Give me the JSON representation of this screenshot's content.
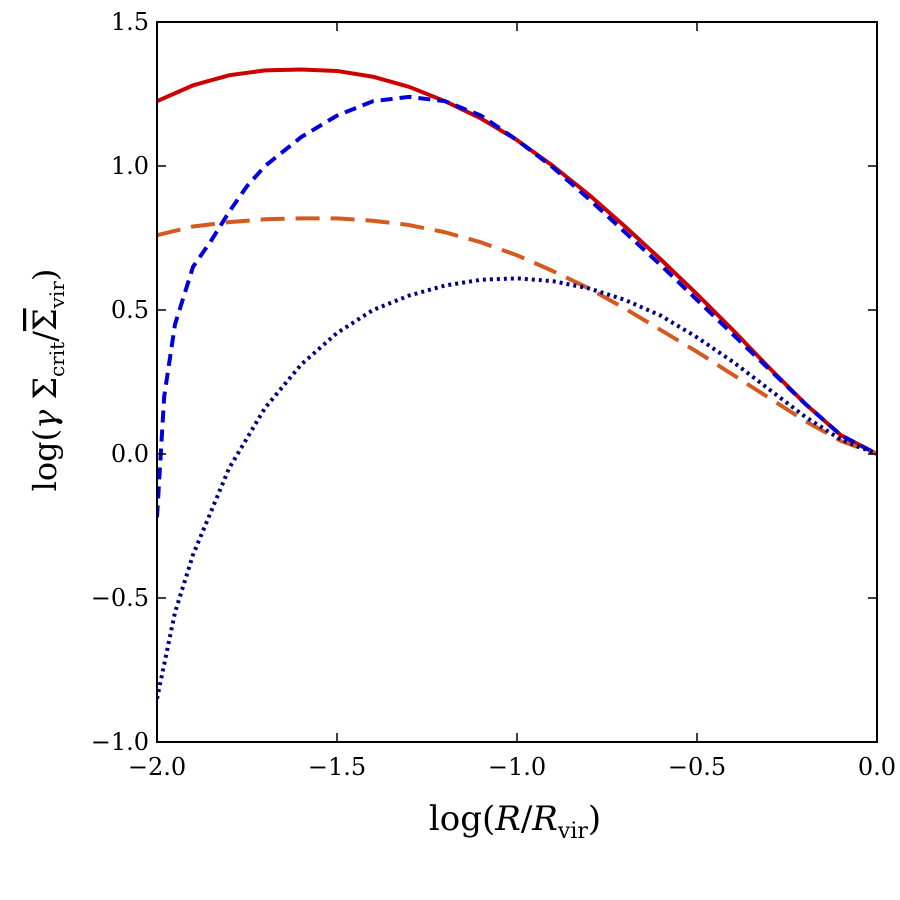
{
  "chart_data": {
    "type": "line",
    "title": "",
    "xlabel": "log(R/R_vir)",
    "ylabel": "log(γ Σ_crit/Σ̄_vir)",
    "xlim": [
      -2.0,
      0.0
    ],
    "ylim": [
      -1.0,
      1.5
    ],
    "xticks": [
      -2.0,
      -1.5,
      -1.0,
      -0.5,
      0.0
    ],
    "yticks": [
      -1.0,
      -0.5,
      0.0,
      0.5,
      1.0,
      1.5
    ],
    "xtick_labels": [
      "−2.0",
      "−1.5",
      "−1.0",
      "−0.5",
      "0.0"
    ],
    "ytick_labels": [
      "−1.0",
      "−0.5",
      "0.0",
      "0.5",
      "1.0",
      "1.5"
    ],
    "grid": false,
    "series": [
      {
        "name": "solid-red",
        "color": "#cc0000",
        "style": "solid",
        "x": [
          -2.0,
          -1.9,
          -1.8,
          -1.7,
          -1.6,
          -1.5,
          -1.4,
          -1.3,
          -1.2,
          -1.1,
          -1.0,
          -0.9,
          -0.8,
          -0.7,
          -0.6,
          -0.5,
          -0.4,
          -0.3,
          -0.2,
          -0.1,
          0.0
        ],
        "y": [
          1.225,
          1.28,
          1.315,
          1.332,
          1.335,
          1.33,
          1.31,
          1.275,
          1.225,
          1.165,
          1.09,
          1.0,
          0.9,
          0.79,
          0.675,
          0.555,
          0.43,
          0.3,
          0.175,
          0.065,
          0.0
        ]
      },
      {
        "name": "dashed-blue",
        "color": "#0000dd",
        "style": "dashed",
        "x": [
          -2.0,
          -1.98,
          -1.95,
          -1.9,
          -1.85,
          -1.8,
          -1.75,
          -1.7,
          -1.6,
          -1.5,
          -1.4,
          -1.3,
          -1.2,
          -1.1,
          -1.0,
          -0.9,
          -0.8,
          -0.7,
          -0.6,
          -0.5,
          -0.4,
          -0.3,
          -0.2,
          -0.1,
          0.0
        ],
        "y": [
          -0.22,
          0.2,
          0.45,
          0.65,
          0.74,
          0.84,
          0.93,
          1.0,
          1.1,
          1.175,
          1.225,
          1.24,
          1.225,
          1.175,
          1.09,
          0.995,
          0.885,
          0.77,
          0.655,
          0.535,
          0.415,
          0.295,
          0.175,
          0.065,
          0.0
        ]
      },
      {
        "name": "long-dash-orange",
        "color": "#d45a20",
        "style": "longdash",
        "x": [
          -2.0,
          -1.9,
          -1.8,
          -1.7,
          -1.6,
          -1.5,
          -1.4,
          -1.3,
          -1.2,
          -1.1,
          -1.0,
          -0.9,
          -0.8,
          -0.7,
          -0.6,
          -0.5,
          -0.4,
          -0.3,
          -0.2,
          -0.1,
          0.0
        ],
        "y": [
          0.76,
          0.79,
          0.805,
          0.815,
          0.818,
          0.818,
          0.81,
          0.795,
          0.77,
          0.735,
          0.69,
          0.635,
          0.575,
          0.505,
          0.43,
          0.355,
          0.275,
          0.195,
          0.115,
          0.045,
          0.0
        ]
      },
      {
        "name": "dotted-navy",
        "color": "#000080",
        "style": "dotted",
        "x": [
          -2.0,
          -1.95,
          -1.9,
          -1.85,
          -1.8,
          -1.7,
          -1.6,
          -1.5,
          -1.4,
          -1.3,
          -1.2,
          -1.1,
          -1.0,
          -0.9,
          -0.8,
          -0.7,
          -0.6,
          -0.5,
          -0.4,
          -0.3,
          -0.2,
          -0.1,
          0.0
        ],
        "y": [
          -0.85,
          -0.55,
          -0.35,
          -0.2,
          -0.05,
          0.16,
          0.31,
          0.42,
          0.5,
          0.55,
          0.585,
          0.605,
          0.61,
          0.6,
          0.575,
          0.535,
          0.48,
          0.405,
          0.32,
          0.225,
          0.13,
          0.05,
          0.0
        ]
      }
    ]
  }
}
